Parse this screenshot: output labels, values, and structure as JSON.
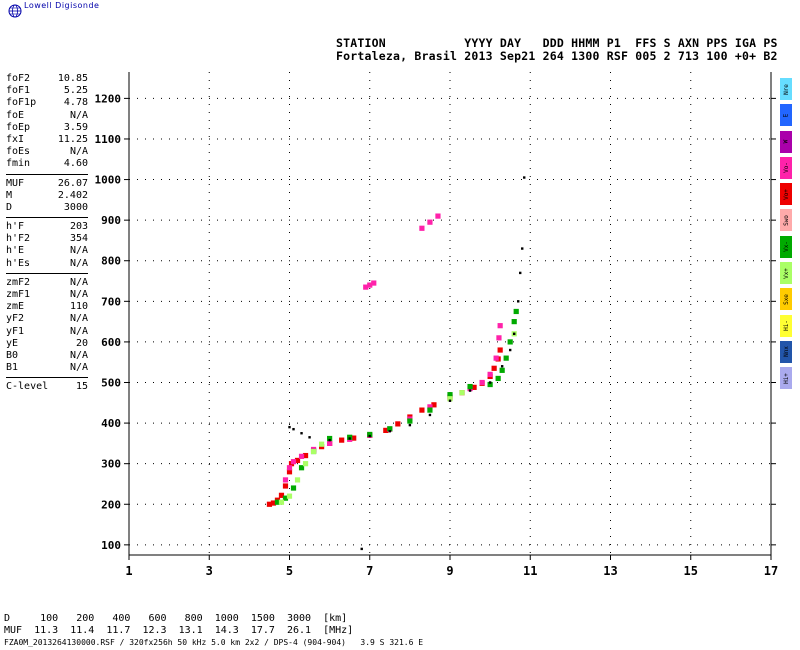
{
  "logo_text": "Lowell Digisonde",
  "header": {
    "line1": "STATION           YYYY DAY   DDD HHMM P1  FFS S AXN PPS IGA PS",
    "line2": "Fortaleza, Brasil 2013 Sep21 264 1300 RSF 005 2 713 100 +0+ B2"
  },
  "params": [
    [
      [
        "foF2",
        "10.85"
      ],
      [
        "foF1",
        "5.25"
      ],
      [
        "foF1p",
        "4.78"
      ],
      [
        "foE",
        "N/A"
      ],
      [
        "foEp",
        "3.59"
      ],
      [
        "fxI",
        "11.25"
      ],
      [
        "foEs",
        "N/A"
      ],
      [
        "fmin",
        "4.60"
      ]
    ],
    [
      [
        "MUF",
        "26.07"
      ],
      [
        "M",
        "2.402"
      ],
      [
        "D",
        "3000"
      ]
    ],
    [
      [
        "h'F",
        "203"
      ],
      [
        "h'F2",
        "354"
      ],
      [
        "h'E",
        "N/A"
      ],
      [
        "h'Es",
        "N/A"
      ]
    ],
    [
      [
        "zmF2",
        "N/A"
      ],
      [
        "zmF1",
        "N/A"
      ],
      [
        "zmE",
        "110"
      ],
      [
        "yF2",
        "N/A"
      ],
      [
        "yF1",
        "N/A"
      ],
      [
        "yE",
        "20"
      ],
      [
        "B0",
        "N/A"
      ],
      [
        "B1",
        "N/A"
      ]
    ],
    [
      [
        "C-level",
        "15"
      ]
    ]
  ],
  "legend": [
    {
      "label": "Nre",
      "color": "#66ddff"
    },
    {
      "label": "E",
      "color": "#2266ff"
    },
    {
      "label": "W",
      "color": "#aa00aa"
    },
    {
      "label": "Vo-",
      "color": "#ff22aa"
    },
    {
      "label": "Vo+",
      "color": "#ee0000"
    },
    {
      "label": "Swo",
      "color": "#ffaaaa"
    },
    {
      "label": "Vx-",
      "color": "#00aa00"
    },
    {
      "label": "Vx+",
      "color": "#aaff66"
    },
    {
      "label": "Sxe",
      "color": "#ffcc00"
    },
    {
      "label": "Hi-",
      "color": "#ffff33"
    },
    {
      "label": "Nnx",
      "color": "#2255aa"
    },
    {
      "label": "Hi+",
      "color": "#aaaaee"
    }
  ],
  "footer": {
    "line1": "D     100   200   400   600   800  1000  1500  3000  [km]",
    "line2": "MUF  11.3  11.4  11.7  12.3  13.1  14.3  17.7  26.1  [MHz]",
    "file": "FZA0M_2013264130000.RSF / 320fx256h 50 kHz 5.0 km 2x2 / DPS-4 (904-904)   3.9 S 321.6 E"
  },
  "chart_data": {
    "type": "scatter",
    "xlim": [
      1,
      17
    ],
    "ylim": [
      75,
      1265
    ],
    "x_ticks": [
      1,
      3,
      5,
      7,
      9,
      11,
      13,
      15,
      17
    ],
    "y_ticks": [
      100,
      200,
      300,
      400,
      500,
      600,
      700,
      800,
      900,
      1000,
      1100,
      1200
    ],
    "grid": true,
    "series": [
      {
        "color": "#ee0000",
        "points": [
          [
            4.5,
            200
          ],
          [
            4.6,
            203
          ],
          [
            4.7,
            210
          ],
          [
            4.8,
            222
          ],
          [
            4.9,
            245
          ],
          [
            5.0,
            280
          ],
          [
            5.05,
            300
          ],
          [
            5.2,
            308
          ],
          [
            5.4,
            320
          ],
          [
            5.6,
            332
          ],
          [
            5.8,
            342
          ],
          [
            6.0,
            350
          ],
          [
            6.3,
            358
          ],
          [
            6.6,
            363
          ],
          [
            7.0,
            370
          ],
          [
            7.4,
            382
          ],
          [
            7.7,
            398
          ],
          [
            8.0,
            415
          ],
          [
            8.3,
            432
          ],
          [
            8.6,
            445
          ],
          [
            9.0,
            462
          ],
          [
            9.3,
            475
          ],
          [
            9.6,
            488
          ],
          [
            9.8,
            498
          ],
          [
            10.0,
            515
          ],
          [
            10.1,
            535
          ],
          [
            10.2,
            558
          ],
          [
            10.25,
            580
          ]
        ]
      },
      {
        "color": "#ff22aa",
        "points": [
          [
            4.9,
            260
          ],
          [
            5.0,
            290
          ],
          [
            5.1,
            305
          ],
          [
            5.3,
            318
          ],
          [
            5.6,
            335
          ],
          [
            6.0,
            350
          ],
          [
            6.5,
            360
          ],
          [
            7.0,
            370
          ],
          [
            7.5,
            385
          ],
          [
            8.0,
            410
          ],
          [
            8.5,
            440
          ],
          [
            9.0,
            465
          ],
          [
            9.5,
            485
          ],
          [
            9.8,
            500
          ],
          [
            10.0,
            520
          ],
          [
            10.15,
            560
          ],
          [
            10.22,
            610
          ],
          [
            10.25,
            640
          ],
          [
            6.9,
            735
          ],
          [
            7.0,
            740
          ],
          [
            7.1,
            745
          ],
          [
            8.3,
            880
          ],
          [
            8.5,
            895
          ],
          [
            8.7,
            910
          ]
        ]
      },
      {
        "color": "#00aa00",
        "points": [
          [
            4.7,
            205
          ],
          [
            4.9,
            215
          ],
          [
            5.1,
            240
          ],
          [
            5.3,
            290
          ],
          [
            5.6,
            330
          ],
          [
            6.0,
            362
          ],
          [
            6.5,
            365
          ],
          [
            7.0,
            372
          ],
          [
            7.5,
            386
          ],
          [
            8.0,
            405
          ],
          [
            8.5,
            432
          ],
          [
            9.0,
            470
          ],
          [
            9.5,
            490
          ],
          [
            10.0,
            495
          ],
          [
            10.2,
            510
          ],
          [
            10.3,
            530
          ],
          [
            10.4,
            560
          ],
          [
            10.5,
            600
          ],
          [
            10.6,
            650
          ],
          [
            10.65,
            675
          ]
        ]
      },
      {
        "color": "#aaff66",
        "points": [
          [
            4.8,
            205
          ],
          [
            5.0,
            220
          ],
          [
            5.2,
            260
          ],
          [
            5.4,
            300
          ],
          [
            5.6,
            330
          ],
          [
            5.8,
            348
          ],
          [
            9.0,
            460
          ],
          [
            9.3,
            475
          ],
          [
            10.6,
            620
          ]
        ]
      },
      {
        "color": "#000000",
        "points": [
          [
            5.0,
            390
          ],
          [
            5.1,
            385
          ],
          [
            5.3,
            375
          ],
          [
            5.5,
            365
          ],
          [
            6.0,
            358
          ],
          [
            6.5,
            362
          ],
          [
            7.0,
            368
          ],
          [
            7.5,
            380
          ],
          [
            8.0,
            395
          ],
          [
            8.5,
            420
          ],
          [
            9.0,
            455
          ],
          [
            9.5,
            480
          ],
          [
            10.0,
            500
          ],
          [
            10.3,
            540
          ],
          [
            10.5,
            580
          ],
          [
            10.6,
            620
          ],
          [
            10.7,
            700
          ],
          [
            10.75,
            770
          ],
          [
            10.8,
            830
          ],
          [
            10.85,
            1005
          ],
          [
            6.8,
            90
          ]
        ]
      }
    ]
  }
}
